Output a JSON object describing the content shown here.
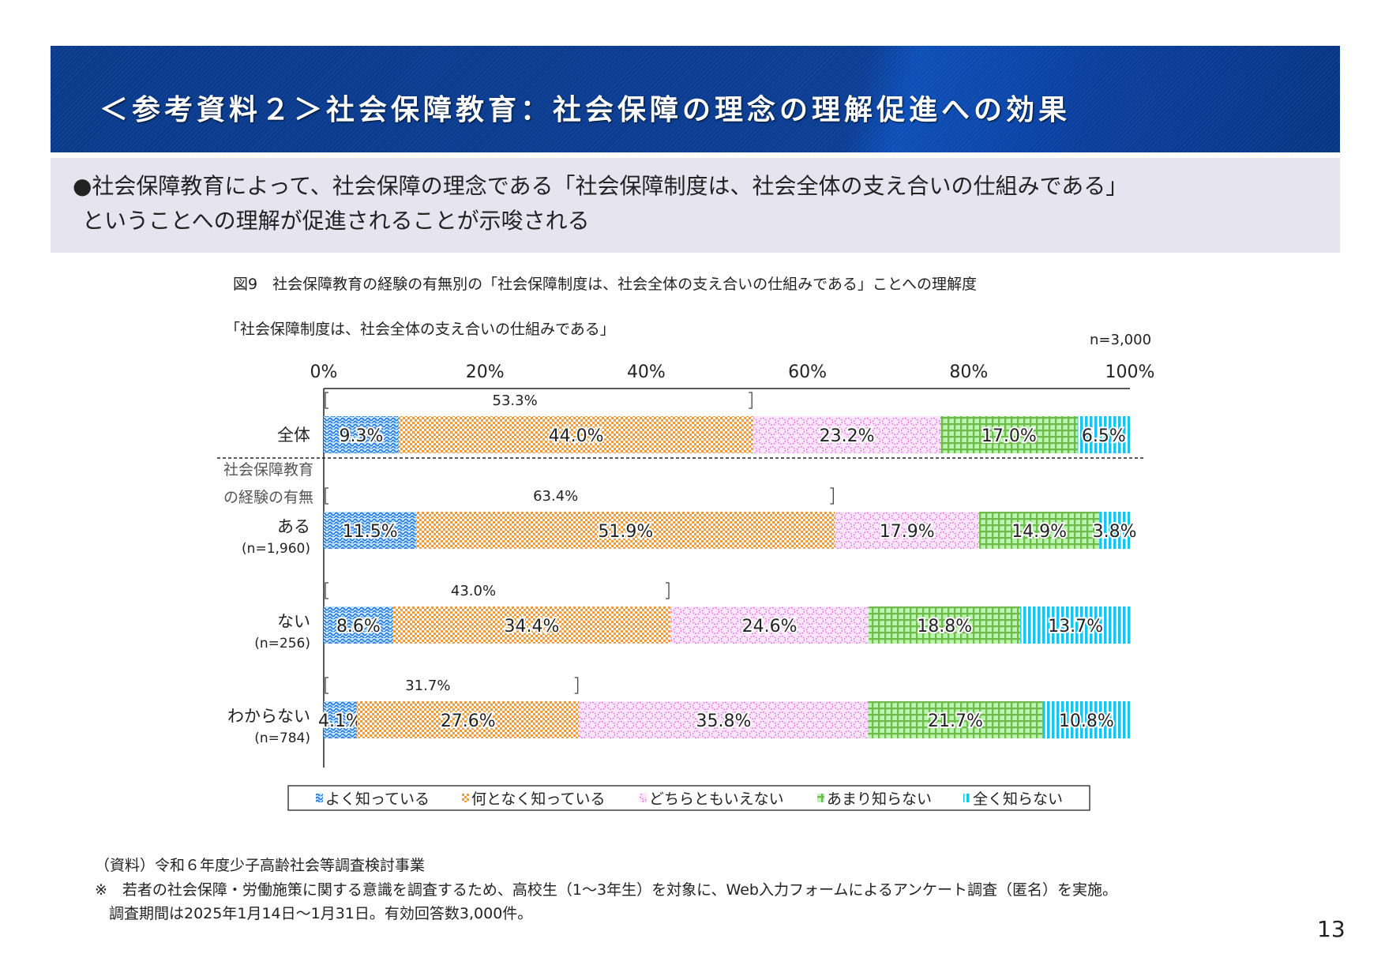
{
  "header": {
    "title": "＜参考資料２＞社会保障教育：社会保障の理念の理解促進への効果"
  },
  "lead": {
    "line1": "●社会保障教育によって、社会保障の理念である「社会保障制度は、社会全体の支え合いの仕組みである」",
    "line2": "ということへの理解が促進されることが示唆される"
  },
  "figure": {
    "caption": "図9　社会保障教育の経験の有無別の「社会保障制度は、社会全体の支え合いの仕組みである」ことへの理解度",
    "subtitle": "「社会保障制度は、社会全体の支え合いの仕組みである」",
    "n_total": "n=3,000"
  },
  "chart_data": {
    "type": "bar",
    "orientation": "horizontal",
    "stacked": true,
    "percent": true,
    "xlim": [
      0,
      100
    ],
    "xticks": [
      "0%",
      "20%",
      "40%",
      "60%",
      "80%",
      "100%"
    ],
    "group_label": [
      "社会保障教育",
      "の経験の有無"
    ],
    "categories": [
      {
        "label": "全体",
        "n": ""
      },
      {
        "label": "ある",
        "n": "(n=1,960)"
      },
      {
        "label": "ない",
        "n": "(n=256)"
      },
      {
        "label": "わからない",
        "n": "(n=784)"
      }
    ],
    "series": [
      {
        "name": "よく知っている",
        "color": "#1a6fd8",
        "values": [
          9.3,
          11.5,
          8.6,
          4.1
        ]
      },
      {
        "name": "何となく知っている",
        "color": "#f59a3a",
        "values": [
          44.0,
          51.9,
          34.4,
          27.6
        ]
      },
      {
        "name": "どちらともいえない",
        "color": "#e46ae4",
        "values": [
          23.2,
          17.9,
          24.6,
          35.8
        ]
      },
      {
        "name": "あまり知らない",
        "color": "#6fb94a",
        "values": [
          17.0,
          14.9,
          18.8,
          21.7
        ]
      },
      {
        "name": "全く知らない",
        "color": "#19c3f0",
        "values": [
          6.5,
          3.8,
          13.7,
          10.8
        ]
      }
    ],
    "bracket_totals": [
      "53.3%",
      "63.4%",
      "43.0%",
      "31.7%"
    ],
    "legend": "bottom",
    "grid": false
  },
  "footer": {
    "source": "（資料）令和６年度少子高齢社会等調査検討事業",
    "note1": "※　若者の社会保障・労働施策に関する意識を調査するため、高校生（1～3年生）を対象に、Web入力フォームによるアンケート調査（匿名）を実施。",
    "note2": "調査期間は2025年1月14日～1月31日。有効回答数3,000件。",
    "page": "13"
  }
}
